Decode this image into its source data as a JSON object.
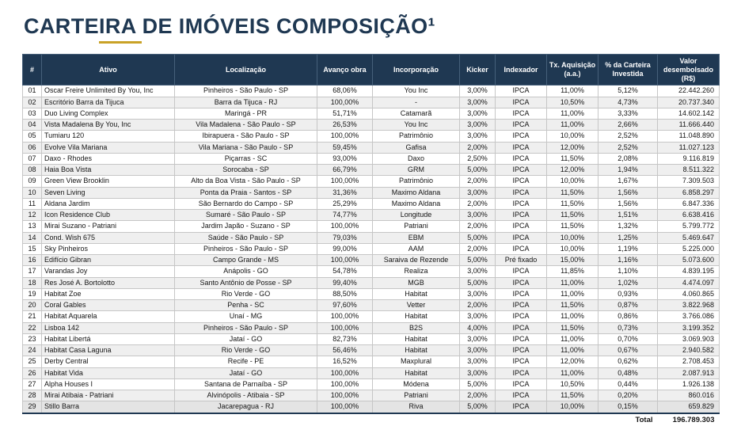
{
  "title": "CARTEIRA DE IMÓVEIS COMPOSIÇÃO¹",
  "theme": {
    "header_bg": "#1F3852",
    "accent_gold": "#C9A227",
    "title_color": "#1F3852"
  },
  "table": {
    "columns": [
      "#",
      "Ativo",
      "Localização",
      "Avanço obra",
      "Incorporação",
      "Kicker",
      "Indexador",
      "Tx. Aquisição (a.a.)",
      "% da Carteira Investida",
      "Valor desembolsado (R$)"
    ],
    "rows": [
      [
        "01",
        "Oscar Freire Unlimited By You, Inc",
        "Pinheiros - São Paulo - SP",
        "68,06%",
        "You Inc",
        "3,00%",
        "IPCA",
        "11,00%",
        "5,12%",
        "22.442.260"
      ],
      [
        "02",
        "Escritório Barra da Tijuca",
        "Barra da Tijuca - RJ",
        "100,00%",
        "-",
        "3,00%",
        "IPCA",
        "10,50%",
        "4,73%",
        "20.737.340"
      ],
      [
        "03",
        "Duo Living Complex",
        "Maringá - PR",
        "51,71%",
        "Catamarã",
        "3,00%",
        "IPCA",
        "11,00%",
        "3,33%",
        "14.602.142"
      ],
      [
        "04",
        "Vista Madalena By You, Inc",
        "Vila Madalena - São Paulo - SP",
        "26,53%",
        "You Inc",
        "3,00%",
        "IPCA",
        "11,00%",
        "2,66%",
        "11.666.440"
      ],
      [
        "05",
        "Tumiaru 120",
        "Ibirapuera - São Paulo - SP",
        "100,00%",
        "Patrimônio",
        "3,00%",
        "IPCA",
        "10,00%",
        "2,52%",
        "11.048.890"
      ],
      [
        "06",
        "Evolve Vila Mariana",
        "Vila Mariana - São Paulo - SP",
        "59,45%",
        "Gafisa",
        "2,00%",
        "IPCA",
        "12,00%",
        "2,52%",
        "11.027.123"
      ],
      [
        "07",
        "Daxo - Rhodes",
        "Piçarras - SC",
        "93,00%",
        "Daxo",
        "2,50%",
        "IPCA",
        "11,50%",
        "2,08%",
        "9.116.819"
      ],
      [
        "08",
        "Haia Boa Vista",
        "Sorocaba - SP",
        "66,79%",
        "GRM",
        "5,00%",
        "IPCA",
        "12,00%",
        "1,94%",
        "8.511.322"
      ],
      [
        "09",
        "Green View Brooklin",
        "Alto da Boa Vista - São Paulo - SP",
        "100,00%",
        "Patrimônio",
        "2,00%",
        "IPCA",
        "10,00%",
        "1,67%",
        "7.309.503"
      ],
      [
        "10",
        "Seven Living",
        "Ponta da Praia - Santos - SP",
        "31,36%",
        "Maximo Aldana",
        "3,00%",
        "IPCA",
        "11,50%",
        "1,56%",
        "6.858.297"
      ],
      [
        "11",
        "Aldana Jardim",
        "São Bernardo do Campo - SP",
        "25,29%",
        "Maximo Aldana",
        "2,00%",
        "IPCA",
        "11,50%",
        "1,56%",
        "6.847.336"
      ],
      [
        "12",
        "Icon Residence Club",
        "Sumaré - São Paulo - SP",
        "74,77%",
        "Longitude",
        "3,00%",
        "IPCA",
        "11,50%",
        "1,51%",
        "6.638.416"
      ],
      [
        "13",
        "Mirai Suzano - Patriani",
        "Jardim Japão - Suzano - SP",
        "100,00%",
        "Patriani",
        "2,00%",
        "IPCA",
        "11,50%",
        "1,32%",
        "5.799.772"
      ],
      [
        "14",
        "Cond. Wish 675",
        "Saúde - São Paulo - SP",
        "79,03%",
        "EBM",
        "5,00%",
        "IPCA",
        "10,00%",
        "1,25%",
        "5.469.647"
      ],
      [
        "15",
        "Sky Pinheiros",
        "Pinheiros - São Paulo - SP",
        "99,00%",
        "AAM",
        "2,00%",
        "IPCA",
        "10,00%",
        "1,19%",
        "5.225.000"
      ],
      [
        "16",
        "Edifício Gibran",
        "Campo Grande - MS",
        "100,00%",
        "Saraiva de Rezende",
        "5,00%",
        "Pré fixado",
        "15,00%",
        "1,16%",
        "5.073.600"
      ],
      [
        "17",
        "Varandas Joy",
        "Anápolis - GO",
        "54,78%",
        "Realiza",
        "3,00%",
        "IPCA",
        "11,85%",
        "1,10%",
        "4.839.195"
      ],
      [
        "18",
        "Res José A. Bortolotto",
        "Santo Antônio de Posse - SP",
        "99,40%",
        "MGB",
        "5,00%",
        "IPCA",
        "11,00%",
        "1,02%",
        "4.474.097"
      ],
      [
        "19",
        "Habitat Zoe",
        "Rio Verde - GO",
        "88,50%",
        "Habitat",
        "3,00%",
        "IPCA",
        "11,00%",
        "0,93%",
        "4.060.865"
      ],
      [
        "20",
        "Coral Gables",
        "Penha - SC",
        "97,60%",
        "Vetter",
        "2,00%",
        "IPCA",
        "11,50%",
        "0,87%",
        "3.822.968"
      ],
      [
        "21",
        "Habitat Aquarela",
        "Unaí - MG",
        "100,00%",
        "Habitat",
        "3,00%",
        "IPCA",
        "11,00%",
        "0,86%",
        "3.766.086"
      ],
      [
        "22",
        "Lisboa 142",
        "Pinheiros - São Paulo - SP",
        "100,00%",
        "B2S",
        "4,00%",
        "IPCA",
        "11,50%",
        "0,73%",
        "3.199.352"
      ],
      [
        "23",
        "Habitat Libertá",
        "Jataí - GO",
        "82,73%",
        "Habitat",
        "3,00%",
        "IPCA",
        "11,00%",
        "0,70%",
        "3.069.903"
      ],
      [
        "24",
        "Habitat Casa Laguna",
        "Rio Verde - GO",
        "56,46%",
        "Habitat",
        "3,00%",
        "IPCA",
        "11,00%",
        "0,67%",
        "2.940.582"
      ],
      [
        "25",
        "Derby Central",
        "Recife - PE",
        "16,52%",
        "Maxplural",
        "3,00%",
        "IPCA",
        "12,00%",
        "0,62%",
        "2.708.453"
      ],
      [
        "26",
        "Habitat Vida",
        "Jataí - GO",
        "100,00%",
        "Habitat",
        "3,00%",
        "IPCA",
        "11,00%",
        "0,48%",
        "2.087.913"
      ],
      [
        "27",
        "Alpha Houses I",
        "Santana de Parnaíba - SP",
        "100,00%",
        "Módena",
        "5,00%",
        "IPCA",
        "10,50%",
        "0,44%",
        "1.926.138"
      ],
      [
        "28",
        "Mirai Atibaia - Patriani",
        "Alvinópolis - Atibaia - SP",
        "100,00%",
        "Patriani",
        "2,00%",
        "IPCA",
        "11,50%",
        "0,20%",
        "860.016"
      ],
      [
        "29",
        "Stillo Barra",
        "Jacarepagua - RJ",
        "100,00%",
        "Riva",
        "5,00%",
        "IPCA",
        "10,00%",
        "0,15%",
        "659.829"
      ]
    ],
    "total_label": "Total",
    "total_value": "196.789.303"
  }
}
